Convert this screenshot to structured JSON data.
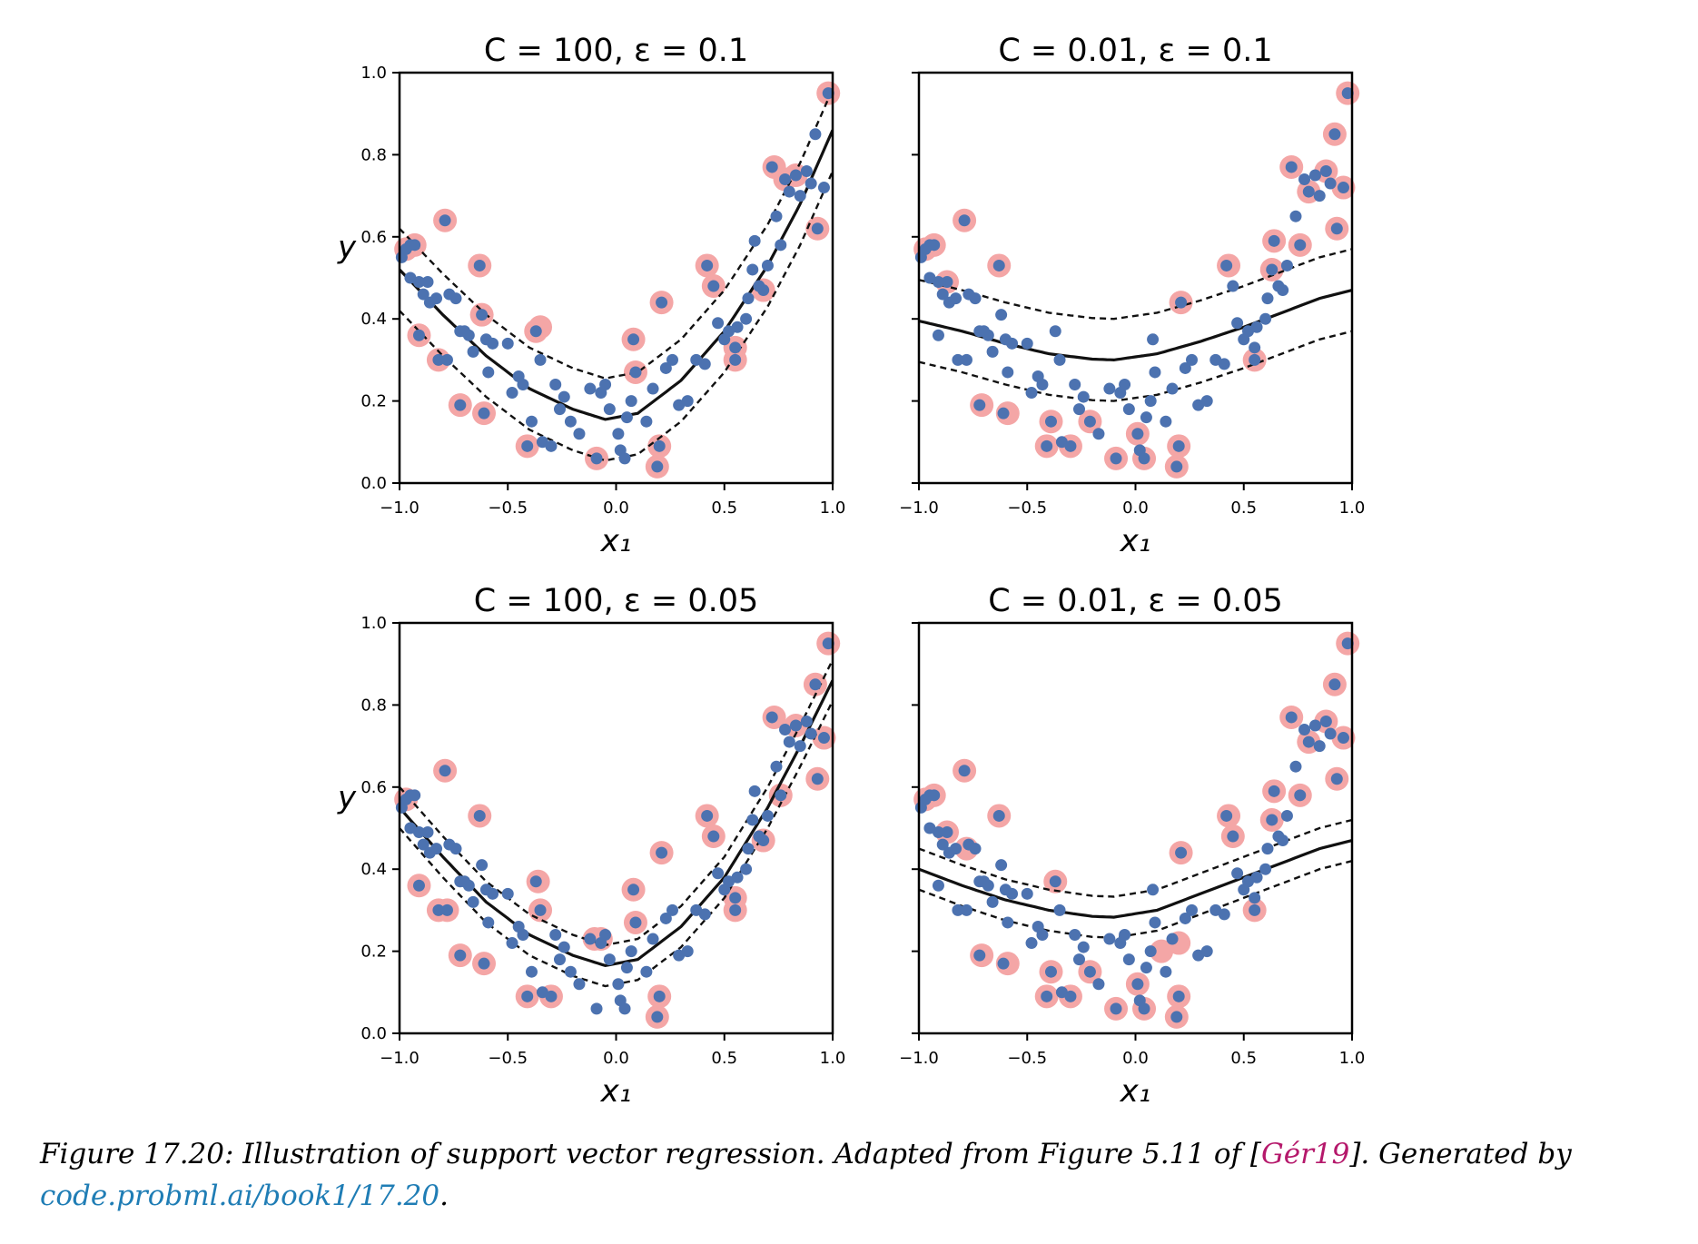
{
  "chart_data": [
    {
      "type": "scatter",
      "title": "C = 100, ε = 0.1",
      "xlabel": "x₁",
      "ylabel": "y",
      "xlim": [
        -1.0,
        1.0
      ],
      "ylim": [
        0.0,
        1.0
      ],
      "xticks": [
        "−1.0",
        "−0.5",
        "0.0",
        "0.5",
        "1.0"
      ],
      "yticks": [
        "0.0",
        "0.2",
        "0.4",
        "0.6",
        "0.8",
        "1.0"
      ],
      "C": 100,
      "epsilon": 0.1,
      "fit_x": [
        -1.0,
        -0.8,
        -0.6,
        -0.4,
        -0.2,
        -0.05,
        0.1,
        0.3,
        0.5,
        0.7,
        0.85,
        1.0
      ],
      "fit_y": [
        0.52,
        0.41,
        0.31,
        0.23,
        0.18,
        0.155,
        0.17,
        0.25,
        0.37,
        0.53,
        0.68,
        0.86
      ],
      "support_vectors": [
        [
          -0.97,
          0.57
        ],
        [
          -0.93,
          0.58
        ],
        [
          -0.79,
          0.64
        ],
        [
          -0.63,
          0.53
        ],
        [
          -0.62,
          0.41
        ],
        [
          -0.91,
          0.36
        ],
        [
          -0.82,
          0.3
        ],
        [
          -0.72,
          0.19
        ],
        [
          -0.61,
          0.17
        ],
        [
          -0.41,
          0.09
        ],
        [
          -0.37,
          0.37
        ],
        [
          -0.35,
          0.38
        ],
        [
          -0.09,
          0.06
        ],
        [
          0.19,
          0.04
        ],
        [
          0.2,
          0.09
        ],
        [
          0.08,
          0.35
        ],
        [
          0.09,
          0.27
        ],
        [
          0.21,
          0.44
        ],
        [
          0.42,
          0.53
        ],
        [
          0.45,
          0.48
        ],
        [
          0.55,
          0.3
        ],
        [
          0.55,
          0.33
        ],
        [
          0.68,
          0.47
        ],
        [
          0.73,
          0.77
        ],
        [
          0.78,
          0.74
        ],
        [
          0.83,
          0.75
        ],
        [
          0.93,
          0.62
        ],
        [
          0.98,
          0.95
        ]
      ]
    },
    {
      "type": "scatter",
      "title": "C = 0.01, ε = 0.1",
      "xlabel": "x₁",
      "ylabel": "",
      "xlim": [
        -1.0,
        1.0
      ],
      "ylim": [
        0.0,
        1.0
      ],
      "xticks": [
        "−1.0",
        "−0.5",
        "0.0",
        "0.5",
        "1.0"
      ],
      "yticks": [],
      "C": 0.01,
      "epsilon": 0.1,
      "fit_x": [
        -1.0,
        -0.8,
        -0.6,
        -0.4,
        -0.2,
        -0.1,
        0.1,
        0.3,
        0.5,
        0.7,
        0.85,
        1.0
      ],
      "fit_y": [
        0.395,
        0.37,
        0.34,
        0.315,
        0.302,
        0.3,
        0.315,
        0.345,
        0.38,
        0.42,
        0.45,
        0.47
      ],
      "support_vectors": [
        [
          -0.97,
          0.57
        ],
        [
          -0.93,
          0.58
        ],
        [
          -0.79,
          0.64
        ],
        [
          -0.63,
          0.53
        ],
        [
          -0.87,
          0.49
        ],
        [
          -0.71,
          0.19
        ],
        [
          -0.59,
          0.17
        ],
        [
          -0.41,
          0.09
        ],
        [
          -0.39,
          0.15
        ],
        [
          -0.3,
          0.09
        ],
        [
          -0.21,
          0.15
        ],
        [
          -0.09,
          0.06
        ],
        [
          0.01,
          0.12
        ],
        [
          0.04,
          0.06
        ],
        [
          0.19,
          0.04
        ],
        [
          0.2,
          0.09
        ],
        [
          0.21,
          0.44
        ],
        [
          0.43,
          0.53
        ],
        [
          0.55,
          0.3
        ],
        [
          0.63,
          0.52
        ],
        [
          0.64,
          0.59
        ],
        [
          0.72,
          0.77
        ],
        [
          0.76,
          0.58
        ],
        [
          0.8,
          0.71
        ],
        [
          0.88,
          0.76
        ],
        [
          0.93,
          0.62
        ],
        [
          0.96,
          0.72
        ],
        [
          0.98,
          0.95
        ],
        [
          0.92,
          0.85
        ]
      ]
    },
    {
      "type": "scatter",
      "title": "C = 100, ε = 0.05",
      "xlabel": "x₁",
      "ylabel": "y",
      "xlim": [
        -1.0,
        1.0
      ],
      "ylim": [
        0.0,
        1.0
      ],
      "xticks": [
        "−1.0",
        "−0.5",
        "0.0",
        "0.5",
        "1.0"
      ],
      "yticks": [
        "0.0",
        "0.2",
        "0.4",
        "0.6",
        "0.8",
        "1.0"
      ],
      "C": 100,
      "epsilon": 0.05,
      "fit_x": [
        -1.0,
        -0.8,
        -0.6,
        -0.4,
        -0.2,
        -0.05,
        0.1,
        0.3,
        0.5,
        0.7,
        0.85,
        1.0
      ],
      "fit_y": [
        0.55,
        0.43,
        0.32,
        0.24,
        0.19,
        0.165,
        0.18,
        0.26,
        0.38,
        0.55,
        0.7,
        0.86
      ],
      "support_vectors": [
        [
          -0.97,
          0.57
        ],
        [
          -0.79,
          0.64
        ],
        [
          -0.63,
          0.53
        ],
        [
          -0.72,
          0.19
        ],
        [
          -0.61,
          0.17
        ],
        [
          -0.91,
          0.36
        ],
        [
          -0.82,
          0.3
        ],
        [
          -0.78,
          0.3
        ],
        [
          -0.41,
          0.09
        ],
        [
          -0.36,
          0.37
        ],
        [
          -0.35,
          0.3
        ],
        [
          -0.3,
          0.09
        ],
        [
          -0.1,
          0.23
        ],
        [
          -0.07,
          0.23
        ],
        [
          0.08,
          0.35
        ],
        [
          0.09,
          0.27
        ],
        [
          0.19,
          0.04
        ],
        [
          0.2,
          0.09
        ],
        [
          0.21,
          0.44
        ],
        [
          0.42,
          0.53
        ],
        [
          0.45,
          0.48
        ],
        [
          0.55,
          0.3
        ],
        [
          0.55,
          0.33
        ],
        [
          0.68,
          0.47
        ],
        [
          0.73,
          0.77
        ],
        [
          0.76,
          0.58
        ],
        [
          0.83,
          0.75
        ],
        [
          0.93,
          0.62
        ],
        [
          0.96,
          0.72
        ],
        [
          0.98,
          0.95
        ],
        [
          0.92,
          0.85
        ]
      ]
    },
    {
      "type": "scatter",
      "title": "C = 0.01, ε = 0.05",
      "xlabel": "x₁",
      "ylabel": "",
      "xlim": [
        -1.0,
        1.0
      ],
      "ylim": [
        0.0,
        1.0
      ],
      "xticks": [
        "−1.0",
        "−0.5",
        "0.0",
        "0.5",
        "1.0"
      ],
      "yticks": [],
      "C": 0.01,
      "epsilon": 0.05,
      "fit_x": [
        -1.0,
        -0.8,
        -0.6,
        -0.4,
        -0.2,
        -0.1,
        0.1,
        0.3,
        0.5,
        0.7,
        0.85,
        1.0
      ],
      "fit_y": [
        0.4,
        0.36,
        0.325,
        0.3,
        0.285,
        0.283,
        0.3,
        0.34,
        0.38,
        0.42,
        0.45,
        0.47
      ],
      "support_vectors": [
        [
          -0.97,
          0.57
        ],
        [
          -0.93,
          0.58
        ],
        [
          -0.79,
          0.64
        ],
        [
          -0.63,
          0.53
        ],
        [
          -0.87,
          0.49
        ],
        [
          -0.78,
          0.45
        ],
        [
          -0.71,
          0.19
        ],
        [
          -0.59,
          0.17
        ],
        [
          -0.41,
          0.09
        ],
        [
          -0.39,
          0.15
        ],
        [
          -0.3,
          0.09
        ],
        [
          -0.21,
          0.15
        ],
        [
          -0.09,
          0.06
        ],
        [
          0.01,
          0.12
        ],
        [
          0.04,
          0.06
        ],
        [
          0.19,
          0.04
        ],
        [
          0.2,
          0.09
        ],
        [
          0.21,
          0.44
        ],
        [
          0.43,
          0.53
        ],
        [
          0.45,
          0.48
        ],
        [
          0.55,
          0.3
        ],
        [
          0.63,
          0.52
        ],
        [
          0.64,
          0.59
        ],
        [
          0.72,
          0.77
        ],
        [
          0.76,
          0.58
        ],
        [
          0.8,
          0.71
        ],
        [
          0.88,
          0.76
        ],
        [
          0.93,
          0.62
        ],
        [
          0.96,
          0.72
        ],
        [
          0.98,
          0.95
        ],
        [
          0.92,
          0.85
        ],
        [
          -0.37,
          0.37
        ],
        [
          0.12,
          0.2
        ],
        [
          0.2,
          0.22
        ]
      ]
    }
  ],
  "data_points": [
    [
      -0.99,
      0.55
    ],
    [
      -0.97,
      0.57
    ],
    [
      -0.95,
      0.58
    ],
    [
      -0.93,
      0.58
    ],
    [
      -0.95,
      0.5
    ],
    [
      -0.91,
      0.49
    ],
    [
      -0.87,
      0.49
    ],
    [
      -0.89,
      0.46
    ],
    [
      -0.86,
      0.44
    ],
    [
      -0.83,
      0.45
    ],
    [
      -0.79,
      0.64
    ],
    [
      -0.77,
      0.46
    ],
    [
      -0.74,
      0.45
    ],
    [
      -0.72,
      0.37
    ],
    [
      -0.7,
      0.37
    ],
    [
      -0.68,
      0.36
    ],
    [
      -0.66,
      0.32
    ],
    [
      -0.63,
      0.53
    ],
    [
      -0.62,
      0.41
    ],
    [
      -0.6,
      0.35
    ],
    [
      -0.57,
      0.34
    ],
    [
      -0.59,
      0.27
    ],
    [
      -0.91,
      0.36
    ],
    [
      -0.82,
      0.3
    ],
    [
      -0.78,
      0.3
    ],
    [
      -0.72,
      0.19
    ],
    [
      -0.61,
      0.17
    ],
    [
      -0.5,
      0.34
    ],
    [
      -0.48,
      0.22
    ],
    [
      -0.45,
      0.26
    ],
    [
      -0.43,
      0.24
    ],
    [
      -0.41,
      0.09
    ],
    [
      -0.39,
      0.15
    ],
    [
      -0.37,
      0.37
    ],
    [
      -0.35,
      0.3
    ],
    [
      -0.34,
      0.1
    ],
    [
      -0.3,
      0.09
    ],
    [
      -0.28,
      0.24
    ],
    [
      -0.26,
      0.18
    ],
    [
      -0.24,
      0.21
    ],
    [
      -0.21,
      0.15
    ],
    [
      -0.17,
      0.12
    ],
    [
      -0.12,
      0.23
    ],
    [
      -0.09,
      0.06
    ],
    [
      -0.07,
      0.22
    ],
    [
      -0.05,
      0.24
    ],
    [
      -0.03,
      0.18
    ],
    [
      0.01,
      0.12
    ],
    [
      0.02,
      0.08
    ],
    [
      0.04,
      0.06
    ],
    [
      0.05,
      0.16
    ],
    [
      0.07,
      0.2
    ],
    [
      0.08,
      0.35
    ],
    [
      0.09,
      0.27
    ],
    [
      0.14,
      0.15
    ],
    [
      0.17,
      0.23
    ],
    [
      0.19,
      0.04
    ],
    [
      0.2,
      0.09
    ],
    [
      0.21,
      0.44
    ],
    [
      0.23,
      0.28
    ],
    [
      0.26,
      0.3
    ],
    [
      0.29,
      0.19
    ],
    [
      0.33,
      0.2
    ],
    [
      0.37,
      0.3
    ],
    [
      0.41,
      0.29
    ],
    [
      0.42,
      0.53
    ],
    [
      0.45,
      0.48
    ],
    [
      0.47,
      0.39
    ],
    [
      0.5,
      0.35
    ],
    [
      0.52,
      0.37
    ],
    [
      0.55,
      0.3
    ],
    [
      0.55,
      0.33
    ],
    [
      0.56,
      0.38
    ],
    [
      0.6,
      0.4
    ],
    [
      0.61,
      0.45
    ],
    [
      0.63,
      0.52
    ],
    [
      0.64,
      0.59
    ],
    [
      0.66,
      0.48
    ],
    [
      0.68,
      0.47
    ],
    [
      0.7,
      0.53
    ],
    [
      0.72,
      0.77
    ],
    [
      0.74,
      0.65
    ],
    [
      0.76,
      0.58
    ],
    [
      0.78,
      0.74
    ],
    [
      0.8,
      0.71
    ],
    [
      0.83,
      0.75
    ],
    [
      0.85,
      0.7
    ],
    [
      0.88,
      0.76
    ],
    [
      0.9,
      0.73
    ],
    [
      0.92,
      0.85
    ],
    [
      0.93,
      0.62
    ],
    [
      0.96,
      0.72
    ],
    [
      0.98,
      0.95
    ]
  ],
  "colors": {
    "point": "#4c72b0",
    "support_vector": "#f4a6a6",
    "fit": "#111111",
    "caption_cite": "#b5186b",
    "caption_link": "#1f7db5"
  },
  "caption": {
    "prefix": "Figure 17.20: Illustration of support vector regression. Adapted from Figure 5.11 of [",
    "cite": "Gér19",
    "middle": "]. Generated by",
    "link": "code.probml.ai/book1/17.20",
    "suffix": "."
  }
}
